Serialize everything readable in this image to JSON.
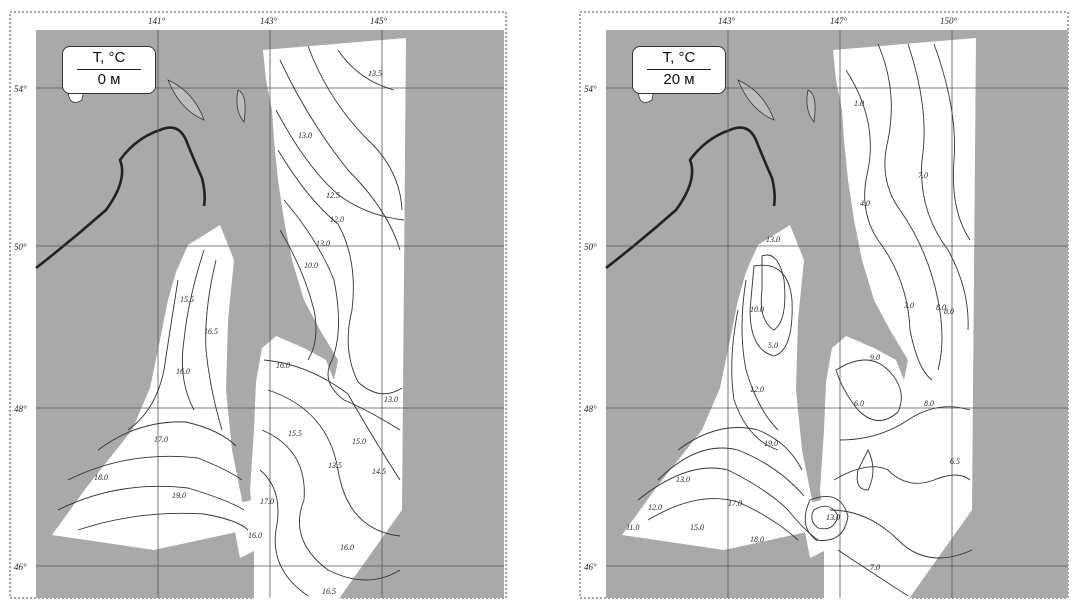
{
  "maps": [
    {
      "parameter": "T, °C",
      "depth": "0 м",
      "lon_labels": [
        "141°",
        "143°",
        "145°"
      ],
      "lat_labels": [
        "54°",
        "50°",
        "48°",
        "46°"
      ],
      "contour_labels": [
        "13.5",
        "13.0",
        "12.5",
        "12.0",
        "13.0",
        "10.0",
        "15.5",
        "16.5",
        "16.0",
        "16.0",
        "13.0",
        "17.0",
        "15.5",
        "15.0",
        "13.5",
        "14.5",
        "18.0",
        "19.0",
        "17.0",
        "16.0",
        "16.0",
        "16.5"
      ]
    },
    {
      "parameter": "T, °C",
      "depth": "20 м",
      "lon_labels": [
        "143°",
        "147°",
        "150°"
      ],
      "lat_labels": [
        "54°",
        "50°",
        "48°",
        "46°"
      ],
      "contour_labels": [
        "1.0",
        "4.0",
        "3.0",
        "7.0",
        "13.0",
        "10.0",
        "5.0",
        "9.0",
        "8.0",
        "8.0",
        "12.0",
        "6.0",
        "8.0",
        "6.5",
        "19.0",
        "13.0",
        "17.0",
        "12.0",
        "11.0",
        "15.0",
        "18.0",
        "13.0",
        "7.0"
      ]
    }
  ]
}
